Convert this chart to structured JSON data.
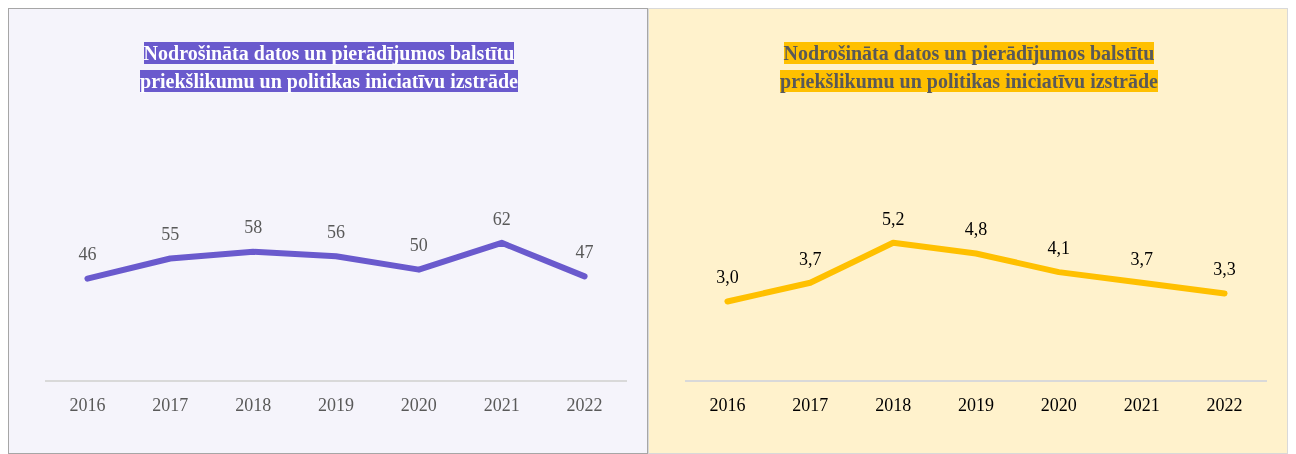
{
  "chart_data": [
    {
      "type": "line",
      "title": "Nodrošināta datos un pierādījumos balstītu priekšlikumu un politikas iniciatīvu izstrāde",
      "categories": [
        "2016",
        "2017",
        "2018",
        "2019",
        "2020",
        "2021",
        "2022"
      ],
      "series": [
        {
          "color": "#6a5acd",
          "values": [
            46,
            55,
            58,
            56,
            50,
            62,
            47
          ]
        }
      ],
      "data_labels": true,
      "grid": false,
      "legend": false,
      "marker": "none",
      "tick_labels": "x"
    },
    {
      "type": "line",
      "title": "Nodrošināta datos un pierādījumos balstītu priekšlikumu un politikas iniciatīvu izstrāde",
      "categories": [
        "2016",
        "2017",
        "2018",
        "2019",
        "2020",
        "2021",
        "2022"
      ],
      "series": [
        {
          "color": "#ffc000",
          "values": [
            3.0,
            3.7,
            5.2,
            4.8,
            4.1,
            3.7,
            3.3
          ],
          "value_labels": [
            "3,0",
            "3,7",
            "5,2",
            "4,8",
            "4,1",
            "3,7",
            "3,3"
          ]
        }
      ],
      "grid": false,
      "legend": false,
      "marker": "none",
      "tick_labels": "x"
    }
  ]
}
